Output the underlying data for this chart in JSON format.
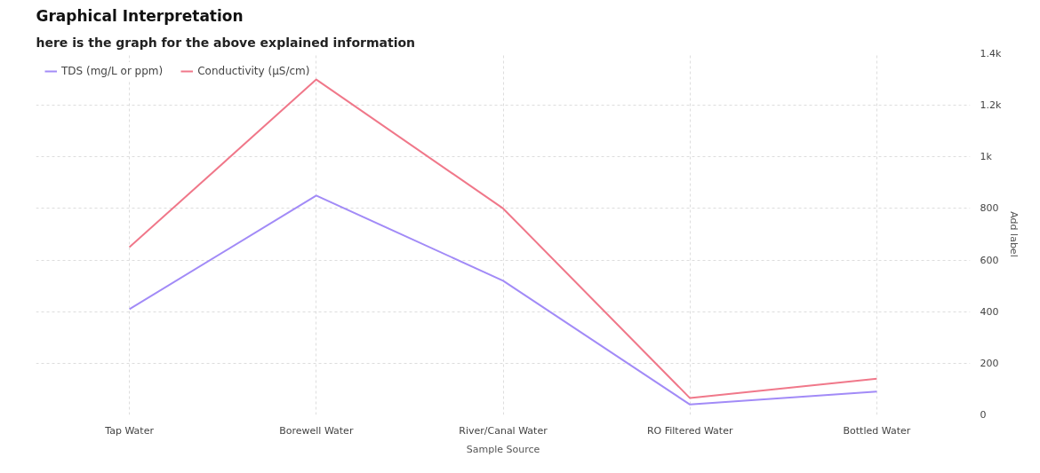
{
  "chart_data": {
    "type": "line",
    "title": "Graphical Interpretation",
    "subtitle": "here is the graph for the above explained information",
    "categories": [
      "Tap Water",
      "Borewell Water",
      "River/Canal Water",
      "RO Filtered Water",
      "Bottled Water"
    ],
    "xlabel": "Sample Source",
    "ylabel": "Add label",
    "series": [
      {
        "name": "TDS (mg/L or ppm)",
        "color": "#a28bf7",
        "values": [
          410,
          850,
          520,
          40,
          90
        ]
      },
      {
        "name": "Conductivity (µS/cm)",
        "color": "#f0788a",
        "values": [
          650,
          1300,
          800,
          65,
          140
        ]
      }
    ],
    "ylim": [
      0,
      1400
    ],
    "yticks": [
      0,
      200,
      400,
      600,
      800,
      {
        "value": 1000,
        "label": "1k"
      },
      {
        "value": 1200,
        "label": "1.2k"
      },
      {
        "value": 1400,
        "label": "1.4k"
      }
    ],
    "grid": true,
    "legend": "top left",
    "marker": "none",
    "line_style": "solid"
  }
}
